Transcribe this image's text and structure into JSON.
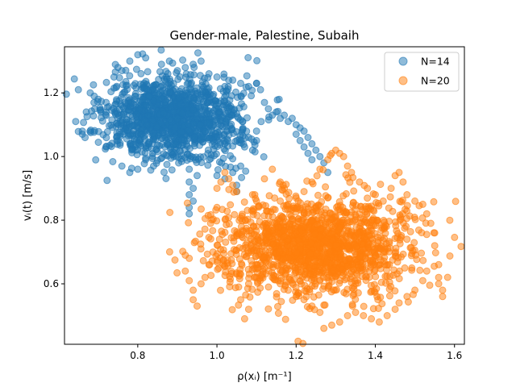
{
  "chart_data": {
    "type": "scatter",
    "title": "Gender-male, Palestine, Subaih",
    "xlabel": "ρ(xᵢ) [m⁻¹]",
    "ylabel": "vᵢ(t) [m/s]",
    "xlim": [
      0.615,
      1.625
    ],
    "ylim": [
      0.41,
      1.345
    ],
    "xticks": [
      0.8,
      1.0,
      1.2,
      1.4,
      1.6
    ],
    "xtick_labels": [
      "0.8",
      "1.0",
      "1.2",
      "1.4",
      "1.6"
    ],
    "yticks": [
      0.6,
      0.8,
      1.0,
      1.2
    ],
    "ytick_labels": [
      "0.6",
      "0.8",
      "1.0",
      "1.2"
    ],
    "grid": false,
    "legend_position": "top-right",
    "series": [
      {
        "name": "N=14",
        "color": "#1f77b4",
        "cluster": {
          "center": [
            0.89,
            1.12
          ],
          "spread": [
            0.085,
            0.065
          ],
          "count": 1300
        },
        "points": [
          [
            0.65,
            1.21
          ],
          [
            0.66,
            1.08
          ],
          [
            0.66,
            1.07
          ],
          [
            0.67,
            1.14
          ],
          [
            0.68,
            1.2
          ],
          [
            0.69,
            1.19
          ],
          [
            0.7,
            1.18
          ],
          [
            0.72,
            1.17
          ],
          [
            0.72,
            1.03
          ],
          [
            0.74,
            1.25
          ],
          [
            0.75,
            1.28
          ],
          [
            0.76,
            1.27
          ],
          [
            0.78,
            1.3
          ],
          [
            0.8,
            1.32
          ],
          [
            0.82,
            1.31
          ],
          [
            0.76,
            0.97
          ],
          [
            0.78,
            0.95
          ],
          [
            0.8,
            0.96
          ],
          [
            0.82,
            0.99
          ],
          [
            0.84,
            0.97
          ],
          [
            0.86,
            1.29
          ],
          [
            0.88,
            1.3
          ],
          [
            0.9,
            1.27
          ],
          [
            0.92,
            1.28
          ],
          [
            0.94,
            1.29
          ],
          [
            0.96,
            1.3
          ],
          [
            0.98,
            1.26
          ],
          [
            1.0,
            1.25
          ],
          [
            1.02,
            1.22
          ],
          [
            1.04,
            1.24
          ],
          [
            1.06,
            1.23
          ],
          [
            1.08,
            1.22
          ],
          [
            1.1,
            1.23
          ],
          [
            1.11,
            1.21
          ],
          [
            1.12,
            1.17
          ],
          [
            1.13,
            1.15
          ],
          [
            1.14,
            1.13
          ],
          [
            1.15,
            1.14
          ],
          [
            1.16,
            1.12
          ],
          [
            1.17,
            1.13
          ],
          [
            1.18,
            1.11
          ],
          [
            1.19,
            1.12
          ],
          [
            1.2,
            1.1
          ],
          [
            1.21,
            1.09
          ],
          [
            1.22,
            1.08
          ],
          [
            1.23,
            1.06
          ],
          [
            1.24,
            1.04
          ],
          [
            1.25,
            1.02
          ],
          [
            1.26,
            1.0
          ],
          [
            1.27,
            0.98
          ],
          [
            1.28,
            0.95
          ],
          [
            1.2,
            1.07
          ],
          [
            1.21,
            1.05
          ],
          [
            1.22,
            1.03
          ],
          [
            1.23,
            1.01
          ],
          [
            1.24,
            0.99
          ],
          [
            0.93,
            0.96
          ],
          [
            0.93,
            0.92
          ],
          [
            0.93,
            0.88
          ],
          [
            0.93,
            0.84
          ],
          [
            0.93,
            0.82
          ],
          [
            0.94,
            0.86
          ],
          [
            0.94,
            0.9
          ],
          [
            0.95,
            0.94
          ],
          [
            1.0,
            0.94
          ],
          [
            1.02,
            0.93
          ],
          [
            1.04,
            0.95
          ],
          [
            1.05,
            0.91
          ],
          [
            1.05,
            0.89
          ],
          [
            1.06,
            0.97
          ],
          [
            1.07,
            1.03
          ],
          [
            1.08,
            1.06
          ],
          [
            1.09,
            1.02
          ],
          [
            1.1,
            1.05
          ],
          [
            1.1,
            1.08
          ]
        ]
      },
      {
        "name": "N=20",
        "color": "#ff7f0e",
        "cluster": {
          "center": [
            1.25,
            0.72
          ],
          "spread": [
            0.12,
            0.075
          ],
          "count": 1600
        },
        "points": [
          [
            0.92,
            0.69
          ],
          [
            0.93,
            0.68
          ],
          [
            0.92,
            0.64
          ],
          [
            0.93,
            0.61
          ],
          [
            0.94,
            0.58
          ],
          [
            0.94,
            0.55
          ],
          [
            0.95,
            0.53
          ],
          [
            0.96,
            0.6
          ],
          [
            0.97,
            0.62
          ],
          [
            0.98,
            0.66
          ],
          [
            0.99,
            0.7
          ],
          [
            1.0,
            0.84
          ],
          [
            1.0,
            0.9
          ],
          [
            1.01,
            0.92
          ],
          [
            1.02,
            0.95
          ],
          [
            1.03,
            0.93
          ],
          [
            1.04,
            0.91
          ],
          [
            1.05,
            0.89
          ],
          [
            1.07,
            0.49
          ],
          [
            1.08,
            0.52
          ],
          [
            1.06,
            0.55
          ],
          [
            1.09,
            0.88
          ],
          [
            1.1,
            0.86
          ],
          [
            1.12,
            0.93
          ],
          [
            1.14,
            0.96
          ],
          [
            1.16,
            0.92
          ],
          [
            1.17,
            0.9
          ],
          [
            1.16,
            0.86
          ],
          [
            1.18,
            0.85
          ],
          [
            1.2,
            0.87
          ],
          [
            1.22,
            0.89
          ],
          [
            1.24,
            0.92
          ],
          [
            1.26,
            0.96
          ],
          [
            1.28,
            0.99
          ],
          [
            1.29,
            1.01
          ],
          [
            1.3,
            1.02
          ],
          [
            1.31,
            1.01
          ],
          [
            1.32,
            1.0
          ],
          [
            1.33,
            0.97
          ],
          [
            1.34,
            0.95
          ],
          [
            1.36,
            0.92
          ],
          [
            1.38,
            0.9
          ],
          [
            1.4,
            0.88
          ],
          [
            1.42,
            0.86
          ],
          [
            1.44,
            0.9
          ],
          [
            1.45,
            0.94
          ],
          [
            1.46,
            0.95
          ],
          [
            1.47,
            0.92
          ],
          [
            1.48,
            0.88
          ],
          [
            1.5,
            0.86
          ],
          [
            1.52,
            0.85
          ],
          [
            1.53,
            0.82
          ],
          [
            1.54,
            0.79
          ],
          [
            1.55,
            0.76
          ],
          [
            1.55,
            0.72
          ],
          [
            1.56,
            0.66
          ],
          [
            1.56,
            0.62
          ],
          [
            1.57,
            0.58
          ],
          [
            1.57,
            0.56
          ],
          [
            1.56,
            0.6
          ],
          [
            1.27,
            0.46
          ],
          [
            1.29,
            0.47
          ],
          [
            1.31,
            0.48
          ],
          [
            1.33,
            0.5
          ],
          [
            1.35,
            0.51
          ],
          [
            1.37,
            0.5
          ],
          [
            1.39,
            0.49
          ],
          [
            1.41,
            0.48
          ],
          [
            1.43,
            0.5
          ],
          [
            1.45,
            0.52
          ],
          [
            1.46,
            0.54
          ],
          [
            1.48,
            0.56
          ],
          [
            1.5,
            0.58
          ],
          [
            1.52,
            0.61
          ],
          [
            1.53,
            0.64
          ],
          [
            1.2,
            0.56
          ],
          [
            1.22,
            0.55
          ],
          [
            1.24,
            0.53
          ],
          [
            1.26,
            0.51
          ],
          [
            1.18,
            0.58
          ],
          [
            1.16,
            0.6
          ],
          [
            1.14,
            0.62
          ],
          [
            1.12,
            0.65
          ],
          [
            1.1,
            0.62
          ],
          [
            1.08,
            0.6
          ],
          [
            1.06,
            0.63
          ]
        ]
      }
    ]
  }
}
